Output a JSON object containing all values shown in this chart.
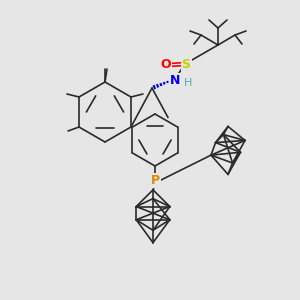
{
  "bg_color": "#e6e6e6",
  "bond_color": "#2a2a2a",
  "bond_width": 1.2,
  "atom_colors": {
    "O": "#ff0000",
    "S": "#cccc00",
    "N": "#0000ee",
    "P": "#dd8800",
    "H": "#55aaaa",
    "C": "#2a2a2a"
  },
  "figsize": [
    3.0,
    3.0
  ],
  "dpi": 100,
  "xlim": [
    0,
    300
  ],
  "ylim": [
    0,
    300
  ]
}
